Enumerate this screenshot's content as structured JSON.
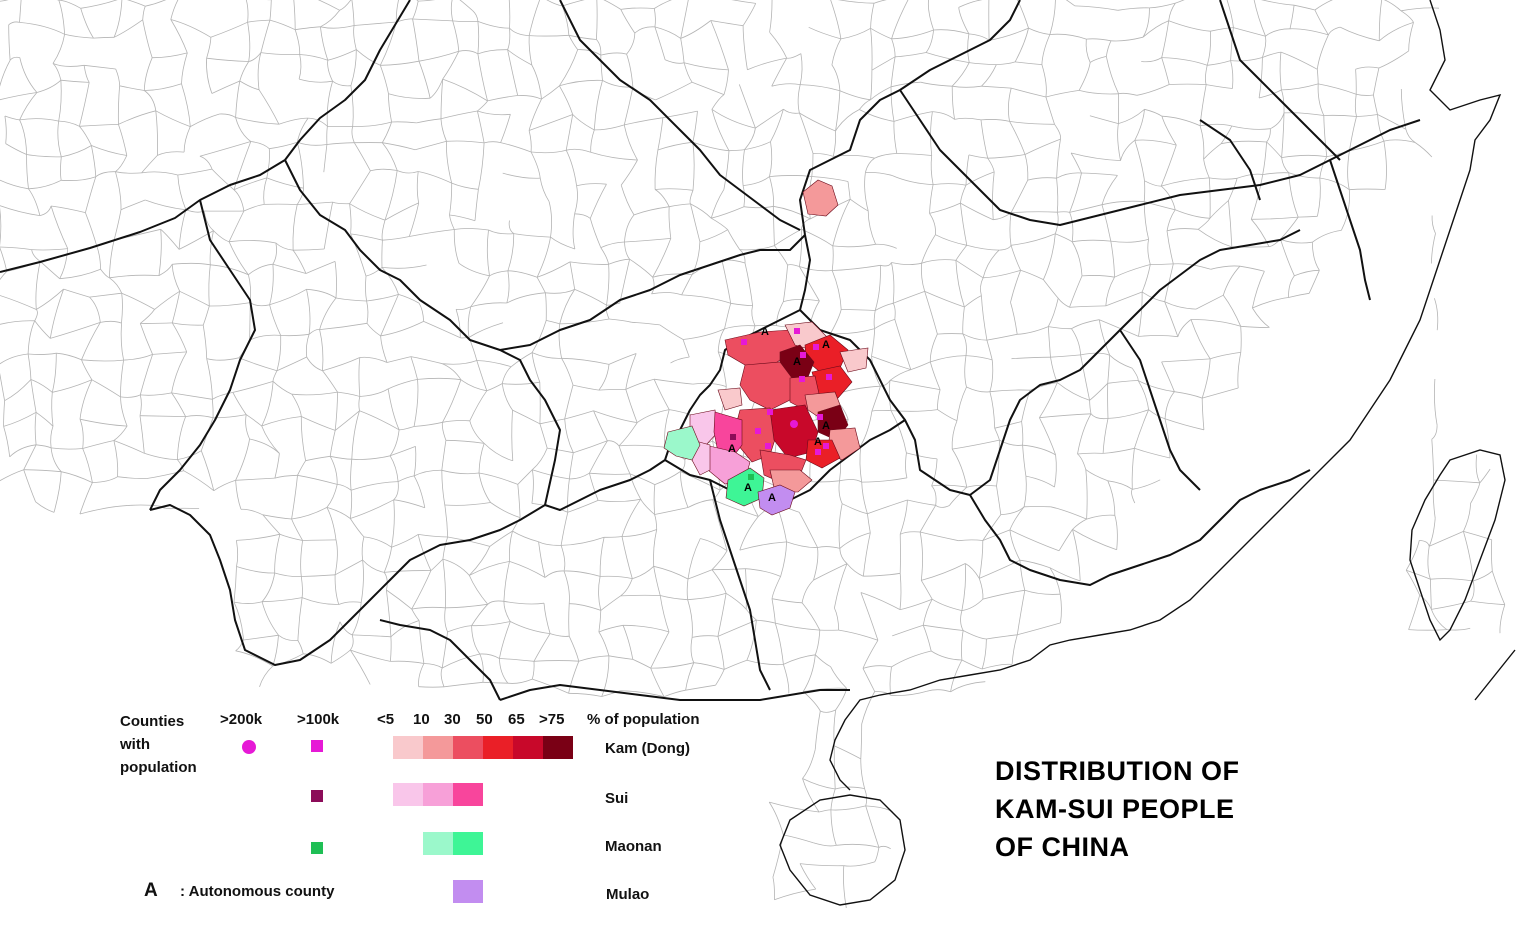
{
  "title_lines": [
    "DISTRIBUTION OF",
    "KAM-SUI PEOPLE",
    "OF CHINA"
  ],
  "legend": {
    "counties_heading": [
      "Counties",
      "with",
      "population"
    ],
    "population_markers": [
      {
        "label": ">200k",
        "shape": "circle"
      },
      {
        "label": ">100k",
        "shape": "square"
      }
    ],
    "percent_thresholds": [
      "<5",
      "10",
      "30",
      "50",
      "65",
      ">75"
    ],
    "percent_heading": "% of population",
    "groups": [
      {
        "name": "Kam (Dong)",
        "marker_color": "#e619d6",
        "colors": [
          "#f9c9cc",
          "#f4999a",
          "#ec4e60",
          "#ea1f27",
          "#c8082a",
          "#7a0015"
        ]
      },
      {
        "name": "Sui",
        "marker_color": "#8c0c59",
        "colors": [
          "#f9c6ea",
          "#f7a0d8",
          "#f8459c"
        ]
      },
      {
        "name": "Maonan",
        "marker_color": "#1fbf55",
        "colors": [
          "#9bf8cb",
          "#3ef596"
        ]
      },
      {
        "name": "Mulao",
        "marker_color": "",
        "colors": [
          "#c28df0"
        ]
      }
    ],
    "autonomous_symbol": "A",
    "autonomous_label": ": Autonomous county"
  }
}
